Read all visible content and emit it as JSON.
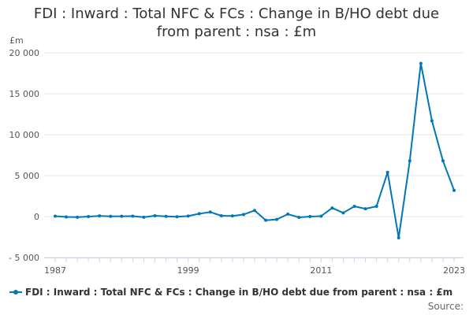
{
  "title_line1": "FDI : Inward : Total NFC & FCs : Change in B/HO debt due",
  "title_line2": "from parent : nsa : £m",
  "source_label": "Source:",
  "colors": {
    "series": "#0077b6",
    "grid": "#e6e6e6",
    "axis": "#ccd6eb"
  },
  "chart_data": {
    "type": "line",
    "title": "FDI : Inward : Total NFC & FCs : Change in B/HO debt due from parent : nsa : £m",
    "ylabel": "£m",
    "xlabel": "",
    "ylim": [
      -5000,
      20000
    ],
    "xlim": [
      1987,
      2023
    ],
    "y_ticks": [
      20000,
      15000,
      10000,
      5000,
      0,
      -5000
    ],
    "y_tick_labels": [
      "20 000",
      "15 000",
      "10 000",
      "5 000",
      "0",
      "- 5 000"
    ],
    "x_ticks": [
      1987,
      1999,
      2011,
      2023
    ],
    "x_tick_labels": [
      "1987",
      "1999",
      "2011",
      "2023"
    ],
    "grid": true,
    "legend_position": "bottom-left",
    "series": [
      {
        "name": "FDI : Inward : Total NFC & FCs : Change in B/HO debt due from parent : nsa : £m",
        "x": [
          1987,
          1988,
          1989,
          1990,
          1991,
          1992,
          1993,
          1994,
          1995,
          1996,
          1997,
          1998,
          1999,
          2000,
          2001,
          2002,
          2003,
          2004,
          2005,
          2006,
          2007,
          2008,
          2009,
          2010,
          2011,
          2012,
          2013,
          2014,
          2015,
          2016,
          2017,
          2018,
          2019,
          2020,
          2021,
          2022,
          2023
        ],
        "values": [
          50,
          -50,
          -80,
          0,
          80,
          30,
          40,
          50,
          -80,
          100,
          20,
          -30,
          60,
          350,
          550,
          100,
          80,
          250,
          750,
          -450,
          -350,
          300,
          -100,
          0,
          50,
          1050,
          450,
          1250,
          950,
          1250,
          5400,
          -2600,
          6800,
          18700,
          11700,
          6800,
          3200
        ]
      }
    ]
  }
}
